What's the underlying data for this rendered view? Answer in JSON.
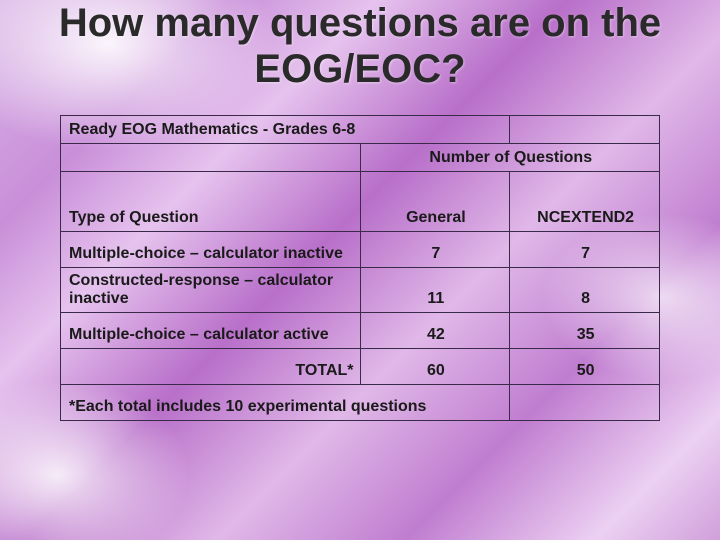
{
  "title": "How many questions are on the EOG/EOC?",
  "table": {
    "border_color": "#3a2a4a",
    "font_size": 16,
    "header": "Ready EOG Mathematics - Grades 6-8",
    "number_header": "Number of Questions",
    "type_label": "Type of Question",
    "col_general": "General",
    "col_ncextend": "NCEXTEND2",
    "rows": [
      {
        "label": "Multiple-choice – calculator inactive",
        "general": "7",
        "ncextend": "7"
      },
      {
        "label": "Constructed-response – calculator inactive",
        "general": "11",
        "ncextend": "8"
      },
      {
        "label": "Multiple-choice – calculator active",
        "general": "42",
        "ncextend": "35"
      }
    ],
    "total_label": "TOTAL*",
    "total_general": "60",
    "total_ncextend": "50",
    "footnote": "*Each total includes 10 experimental questions"
  },
  "background": {
    "gradient_colors": [
      "#d9b3e6",
      "#c98fd9",
      "#e6c3ee",
      "#b86fc9",
      "#e0b8e8",
      "#c07dd0",
      "#ecd0f2",
      "#d0a0db"
    ]
  }
}
